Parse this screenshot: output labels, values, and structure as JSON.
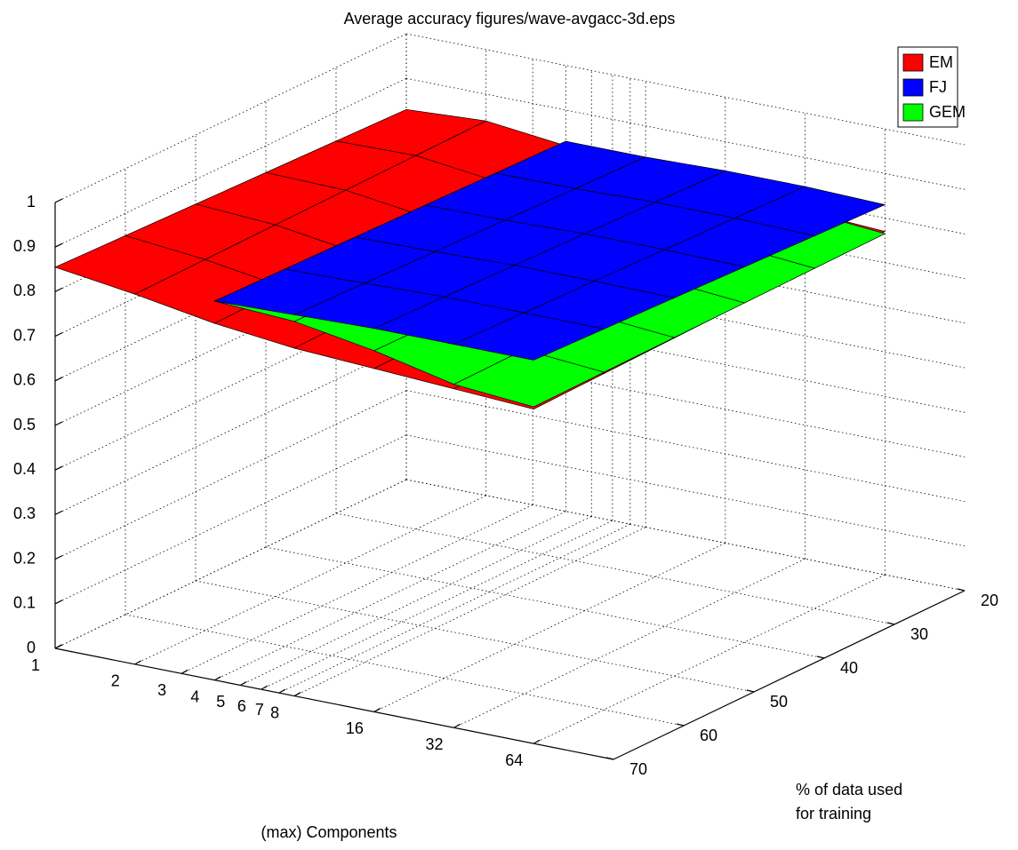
{
  "chart_data": {
    "type": "surface3d",
    "title": "Average accuracy figures/wave-avgacc-3d.eps",
    "xlabel": "(max) Components",
    "ylabel": "% of data used for training",
    "xscale": "log",
    "xlim": [
      1,
      128
    ],
    "xticks": [
      1,
      2,
      3,
      4,
      5,
      6,
      7,
      8,
      16,
      32,
      64
    ],
    "ylim": [
      20,
      70
    ],
    "yticks": [
      20,
      30,
      40,
      50,
      60,
      70
    ],
    "zlim": [
      0,
      1
    ],
    "zticks": [
      0,
      0.1,
      0.2,
      0.3,
      0.4,
      0.5,
      0.6,
      0.7,
      0.8,
      0.9,
      1
    ],
    "grid": true,
    "legend": "upper right",
    "y": [
      20,
      30,
      40,
      50,
      60,
      70
    ],
    "series": [
      {
        "name": "EM",
        "color": "#ff0000",
        "x": [
          1,
          2,
          4,
          8,
          16,
          32,
          64
        ],
        "values": [
          [
            0.83,
            0.84,
            0.82,
            0.8,
            0.79,
            0.78,
            0.77
          ],
          [
            0.835,
            0.838,
            0.816,
            0.796,
            0.786,
            0.776,
            0.766
          ],
          [
            0.84,
            0.836,
            0.812,
            0.792,
            0.782,
            0.772,
            0.762
          ],
          [
            0.845,
            0.834,
            0.808,
            0.788,
            0.778,
            0.768,
            0.758
          ],
          [
            0.85,
            0.832,
            0.804,
            0.784,
            0.774,
            0.764,
            0.754
          ],
          [
            0.855,
            0.83,
            0.8,
            0.78,
            0.77,
            0.76,
            0.75
          ]
        ]
      },
      {
        "name": "FJ",
        "color": "#0000ff",
        "x": [
          4,
          8,
          16,
          32,
          64
        ],
        "values": [
          [
            0.83,
            0.83,
            0.835,
            0.835,
            0.83
          ],
          [
            0.834,
            0.835,
            0.84,
            0.84,
            0.836
          ],
          [
            0.838,
            0.84,
            0.845,
            0.845,
            0.842
          ],
          [
            0.842,
            0.845,
            0.85,
            0.85,
            0.848
          ],
          [
            0.846,
            0.85,
            0.855,
            0.855,
            0.854
          ],
          [
            0.85,
            0.855,
            0.86,
            0.86,
            0.86
          ]
        ]
      },
      {
        "name": "GEM",
        "color": "#00ff00",
        "x": [
          4,
          8,
          16,
          32,
          64
        ],
        "values": [
          [
            0.83,
            0.82,
            0.8,
            0.78,
            0.765
          ],
          [
            0.834,
            0.824,
            0.802,
            0.778,
            0.763
          ],
          [
            0.838,
            0.828,
            0.804,
            0.776,
            0.761
          ],
          [
            0.842,
            0.832,
            0.806,
            0.774,
            0.759
          ],
          [
            0.846,
            0.836,
            0.808,
            0.772,
            0.757
          ],
          [
            0.85,
            0.84,
            0.81,
            0.77,
            0.755
          ]
        ]
      }
    ]
  }
}
